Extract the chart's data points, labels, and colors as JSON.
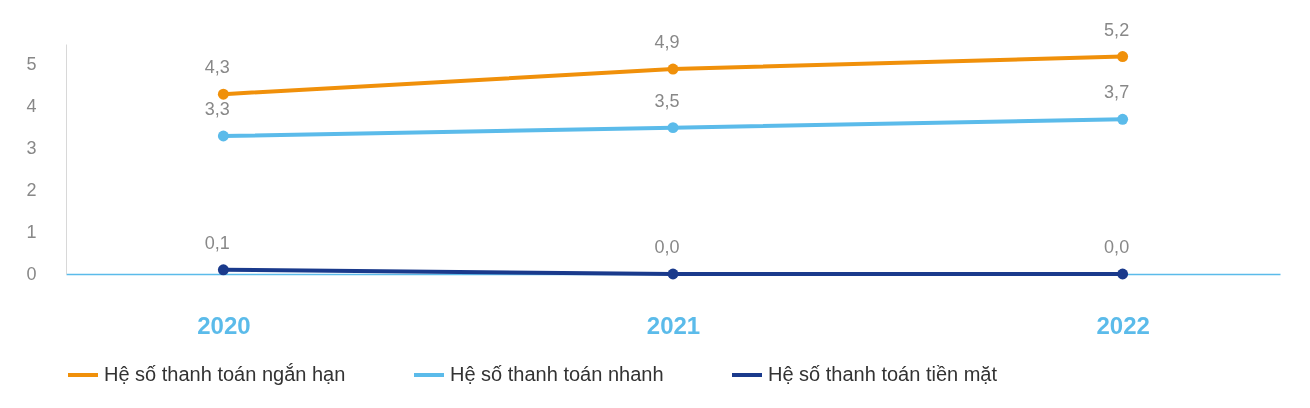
{
  "chart_data": {
    "type": "line",
    "categories": [
      "2020",
      "2021",
      "2022"
    ],
    "series": [
      {
        "name": "Hệ số thanh toán ngắn hạn",
        "color": "#f0900a",
        "values": [
          4.3,
          4.9,
          5.2
        ],
        "value_labels": [
          "4,3",
          "4,9",
          "5,2"
        ]
      },
      {
        "name": "Hệ số thanh toán nhanh",
        "color": "#5bbbea",
        "values": [
          3.3,
          3.5,
          3.7
        ],
        "value_labels": [
          "3,3",
          "3,5",
          "3,7"
        ]
      },
      {
        "name": "Hệ số thanh toán tiền mặt",
        "color": "#1a3a8c",
        "values": [
          0.1,
          0.0,
          0.0
        ],
        "value_labels": [
          "0,1",
          "0,0",
          "0,0"
        ]
      }
    ],
    "ylim": [
      0,
      5.5
    ],
    "yticks": [
      0,
      1,
      2,
      3,
      4,
      5
    ],
    "grid": false,
    "legend": "bottom",
    "marker": "circle",
    "line_style": "solid"
  }
}
